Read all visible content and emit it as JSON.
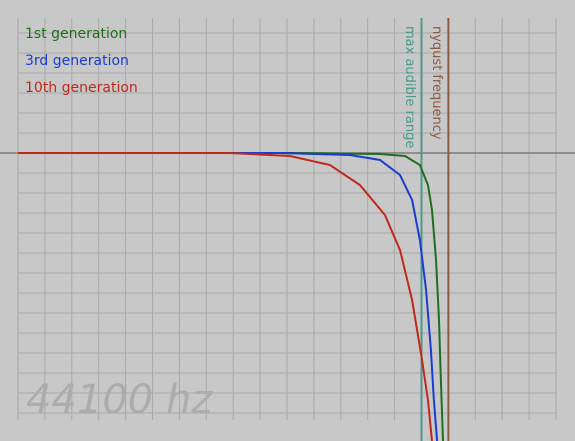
{
  "chart_data": {
    "type": "line",
    "xlim": [
      0,
      20
    ],
    "ylim": [
      -14.4,
      6.75
    ],
    "grid": true,
    "legend_position": "upper left",
    "watermark": "44100 hz",
    "annotations": [
      {
        "text": "max audible range",
        "x": 15,
        "color": "#4a9a8c"
      },
      {
        "text": "nyqust frequency",
        "x": 16,
        "color": "#8a5a44"
      }
    ],
    "series": [
      {
        "name": "1st generation",
        "color": "#1e6e1e",
        "x": [
          0,
          10.48,
          13.46,
          14.39,
          14.94,
          15.24,
          15.39,
          15.54,
          15.65,
          15.72,
          15.8
        ],
        "values": [
          0,
          0,
          -0.05,
          -0.15,
          -0.6,
          -1.6,
          -2.85,
          -5.35,
          -8.35,
          -11.35,
          -14.4
        ]
      },
      {
        "name": "3rd generation",
        "color": "#1a3cd0",
        "x": [
          0,
          9.74,
          12.34,
          13.46,
          14.2,
          14.65,
          14.94,
          15.17,
          15.35,
          15.46,
          15.58
        ],
        "values": [
          0,
          0,
          -0.1,
          -0.35,
          -1.1,
          -2.35,
          -4.35,
          -6.85,
          -9.85,
          -12.35,
          -14.4
        ]
      },
      {
        "name": "10th generation",
        "color": "#c0281a",
        "x": [
          0,
          7.88,
          10.11,
          11.6,
          12.71,
          13.64,
          14.2,
          14.65,
          15.02,
          15.24,
          15.39
        ],
        "values": [
          0,
          0,
          -0.15,
          -0.6,
          -1.6,
          -3.1,
          -4.85,
          -7.35,
          -10.35,
          -12.35,
          -14.4
        ]
      }
    ]
  }
}
